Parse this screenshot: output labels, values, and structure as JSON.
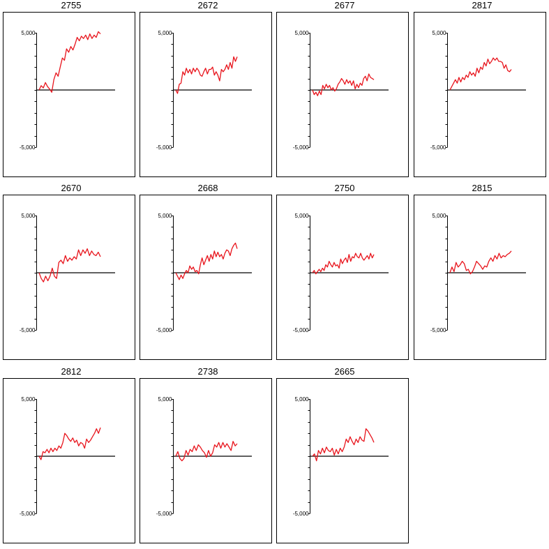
{
  "chart_data": [
    {
      "type": "line",
      "title": "2755",
      "ylim": [
        -5000,
        5000
      ],
      "ytick_top": "5,000",
      "ytick_bottom": "-5,000",
      "series_color": "#e8141c",
      "values": [
        0,
        380,
        180,
        650,
        300,
        80,
        -200,
        900,
        1500,
        1200,
        2000,
        2800,
        2600,
        3600,
        3300,
        3800,
        3500,
        4000,
        4600,
        4300,
        4700,
        4500,
        4800,
        4400,
        4900,
        4500,
        4800,
        4600,
        5100,
        4900
      ]
    },
    {
      "type": "line",
      "title": "2672",
      "ylim": [
        -5000,
        5000
      ],
      "ytick_top": "5,000",
      "ytick_bottom": "-5,000",
      "series_color": "#e8141c",
      "values": [
        0,
        -300,
        500,
        600,
        1600,
        1300,
        1900,
        1500,
        1800,
        1400,
        1900,
        1600,
        1900,
        1700,
        1300,
        1200,
        1600,
        1900,
        1400,
        1800,
        1800,
        2000,
        1300,
        1600,
        1300,
        800,
        1800,
        1600,
        1800,
        2200,
        1800,
        2400,
        1900,
        2900,
        2500,
        2900
      ]
    },
    {
      "type": "line",
      "title": "2677",
      "ylim": [
        -5000,
        5000
      ],
      "ytick_top": "5,000",
      "ytick_bottom": "-5,000",
      "series_color": "#e8141c",
      "values": [
        0,
        -400,
        -200,
        -500,
        -100,
        -400,
        400,
        100,
        500,
        200,
        400,
        0,
        200,
        -100,
        100,
        500,
        700,
        1000,
        800,
        500,
        900,
        600,
        800,
        400,
        800,
        100,
        500,
        200,
        600,
        400,
        1000,
        1200,
        800,
        1400,
        1100,
        1000,
        900
      ]
    },
    {
      "type": "line",
      "title": "2817",
      "ylim": [
        -5000,
        5000
      ],
      "ytick_top": "5,000",
      "ytick_bottom": "-5,000",
      "series_color": "#e8141c",
      "values": [
        0,
        300,
        600,
        900,
        600,
        1100,
        700,
        1100,
        900,
        1300,
        1100,
        1600,
        1300,
        1500,
        1200,
        1900,
        1500,
        2000,
        1800,
        2400,
        2100,
        2700,
        2300,
        2500,
        2800,
        2600,
        2800,
        2500,
        2500,
        2400,
        1900,
        2200,
        1700,
        1600,
        1800
      ]
    },
    {
      "type": "line",
      "title": "2670",
      "ylim": [
        -5000,
        5000
      ],
      "ytick_top": "5,000",
      "ytick_bottom": "-5,000",
      "series_color": "#e8141c",
      "values": [
        0,
        -500,
        -800,
        -300,
        -700,
        -300,
        400,
        -300,
        -500,
        900,
        1100,
        800,
        1500,
        1000,
        1300,
        1100,
        1400,
        1200,
        2000,
        1500,
        2000,
        1700,
        2100,
        1500,
        1900,
        1600,
        1500,
        1800,
        1400
      ]
    },
    {
      "type": "line",
      "title": "2668",
      "ylim": [
        -5000,
        5000
      ],
      "ytick_top": "5,000",
      "ytick_bottom": "-5,000",
      "series_color": "#e8141c",
      "values": [
        0,
        -300,
        -600,
        -200,
        -500,
        -100,
        200,
        0,
        600,
        300,
        500,
        100,
        200,
        -100,
        700,
        1300,
        700,
        1100,
        1500,
        1000,
        1600,
        1200,
        1900,
        1400,
        1800,
        1400,
        1600,
        1200,
        1700,
        2000,
        1900,
        1500,
        2100,
        2400,
        2600,
        2100
      ]
    },
    {
      "type": "line",
      "title": "2750",
      "ylim": [
        -5000,
        5000
      ],
      "ytick_top": "5,000",
      "ytick_bottom": "-5,000",
      "series_color": "#e8141c",
      "values": [
        0,
        200,
        -100,
        100,
        300,
        100,
        400,
        200,
        700,
        500,
        1000,
        700,
        500,
        900,
        600,
        700,
        400,
        1200,
        800,
        1100,
        1300,
        900,
        1600,
        1000,
        1400,
        1300,
        1700,
        1400,
        1300,
        1700,
        1300,
        1100,
        1300,
        1500,
        1200,
        1700,
        1300,
        1600
      ]
    },
    {
      "type": "line",
      "title": "2815",
      "ylim": [
        -5000,
        5000
      ],
      "ytick_top": "5,000",
      "ytick_bottom": "-5,000",
      "series_color": "#e8141c",
      "values": [
        0,
        500,
        100,
        900,
        500,
        700,
        1000,
        800,
        200,
        300,
        -100,
        100,
        500,
        1000,
        800,
        600,
        300,
        600,
        500,
        1000,
        1300,
        1000,
        1500,
        1200,
        1700,
        1300,
        1500,
        1400,
        1600,
        1700,
        1900
      ]
    },
    {
      "type": "line",
      "title": "2812",
      "ylim": [
        -5000,
        5000
      ],
      "ytick_top": "5,000",
      "ytick_bottom": "-5,000",
      "series_color": "#e8141c",
      "values": [
        0,
        -300,
        400,
        300,
        600,
        300,
        700,
        400,
        700,
        500,
        900,
        700,
        1200,
        2000,
        1800,
        1500,
        1300,
        1600,
        1200,
        1400,
        900,
        1200,
        1100,
        700,
        1500,
        1200,
        1400,
        1700,
        2000,
        2400,
        2000,
        2500
      ]
    },
    {
      "type": "line",
      "title": "2738",
      "ylim": [
        -5000,
        5000
      ],
      "ytick_top": "5,000",
      "ytick_bottom": "-5,000",
      "series_color": "#e8141c",
      "values": [
        0,
        400,
        -200,
        -400,
        -200,
        500,
        100,
        600,
        400,
        900,
        500,
        1000,
        800,
        500,
        300,
        -100,
        500,
        0,
        300,
        1000,
        800,
        1200,
        700,
        1200,
        800,
        1100,
        800,
        500,
        1300,
        900,
        1100
      ]
    },
    {
      "type": "line",
      "title": "2665",
      "ylim": [
        -5000,
        5000
      ],
      "ytick_top": "5,000",
      "ytick_bottom": "-5,000",
      "series_color": "#e8141c",
      "values": [
        0,
        200,
        -400,
        500,
        200,
        700,
        300,
        800,
        500,
        400,
        700,
        100,
        600,
        200,
        700,
        400,
        800,
        1500,
        1200,
        1700,
        1300,
        1000,
        1500,
        1200,
        1700,
        1400,
        1300,
        2400,
        2200,
        1900,
        1600,
        1200
      ]
    }
  ]
}
